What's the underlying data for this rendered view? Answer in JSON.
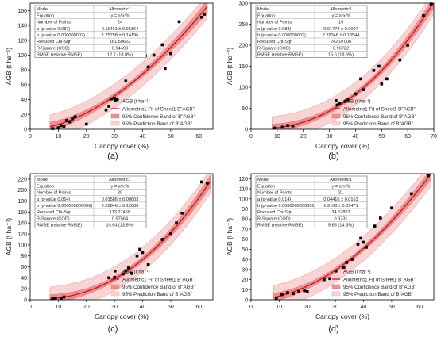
{
  "chart_data": [
    {
      "type": "scatter",
      "panel_label": "(a)",
      "xlabel": "Canopy cover (%)",
      "ylabel": "AGB (t ha⁻¹)",
      "xlim": [
        0,
        65
      ],
      "ylim": [
        0,
        170
      ],
      "xticks": [
        0,
        10,
        20,
        30,
        40,
        50,
        60
      ],
      "yticks": [
        0,
        20,
        40,
        60,
        80,
        100,
        120,
        140,
        160
      ],
      "model": {
        "a": 0.11401,
        "b": 1.75758,
        "conf_half_width": 6,
        "pred_half_width": 16
      },
      "stats_table": [
        [
          "Model",
          "Allometric1"
        ],
        [
          "Equation",
          "y = a*x^b"
        ],
        [
          "Number of Points",
          "24"
        ],
        [
          "a (p-value 0.087)",
          "0.11401 ± 0.06364"
        ],
        [
          "b (p-value 0.000000002)",
          "1.75758 ± 0.14196"
        ],
        [
          "Reduced Chi-Sqr",
          "161.50622"
        ],
        [
          "R-Square (COD)",
          "0.94493"
        ],
        [
          "RMSE (relative RMSE)",
          "12.7 (18.8%)"
        ]
      ],
      "legend": [
        "AGB (t ha⁻¹)",
        "Allometric1 Fit of Sheet1 B\"AGB\"",
        "95% Confidence Band of B\"AGB\"",
        "95% Prediction Band of B\"AGB\""
      ],
      "legend_position": "bottom-right",
      "points": [
        [
          8,
          1
        ],
        [
          10,
          2
        ],
        [
          11,
          5
        ],
        [
          12,
          4
        ],
        [
          13,
          12
        ],
        [
          14,
          10
        ],
        [
          15,
          14
        ],
        [
          16,
          17
        ],
        [
          20,
          7
        ],
        [
          27,
          26
        ],
        [
          28,
          31
        ],
        [
          29,
          41
        ],
        [
          30,
          42
        ],
        [
          31,
          40
        ],
        [
          34,
          65
        ],
        [
          41,
          99
        ],
        [
          42,
          84
        ],
        [
          44,
          100
        ],
        [
          47,
          114
        ],
        [
          48,
          82
        ],
        [
          50,
          102
        ],
        [
          53,
          145
        ],
        [
          61,
          151
        ],
        [
          62,
          155
        ]
      ]
    },
    {
      "type": "scatter",
      "panel_label": "(b)",
      "xlabel": "Canopy cover (%)",
      "ylabel": "AGB (t ha⁻¹)",
      "xlim": [
        0,
        70
      ],
      "ylim": [
        0,
        300
      ],
      "xticks": [
        0,
        10,
        20,
        30,
        40,
        50,
        60,
        70
      ],
      "yticks": [
        0,
        50,
        100,
        150,
        200,
        250,
        300
      ],
      "model": {
        "a": 0.01772,
        "b": 2.29346,
        "conf_half_width": 10,
        "pred_half_width": 28
      },
      "stats_table": [
        [
          "Model",
          "Allometric1"
        ],
        [
          "Equation",
          "y = a*x^b"
        ],
        [
          "Number of Points",
          "19"
        ],
        [
          "a (p-value 0.083)",
          "0.01772 ± 0.0097"
        ],
        [
          "b (p-value 0.000000002)",
          "2.29346 ± 0.13544"
        ],
        [
          "Reduced Chi-Sqr",
          "242.07006"
        ],
        [
          "R-Square (COD)",
          "0.96722"
        ],
        [
          "RMSE (relative RMSE)",
          "15.6 (19.6%)"
        ]
      ],
      "legend": [
        "AGB (t ha⁻¹)",
        "Allometric1 Fit of Sheet1 B\"AGB\"",
        "95% Confidence Band of B\"AGB\"",
        "95% Prediction Band of B\"AGB\""
      ],
      "legend_position": "bottom-right",
      "points": [
        [
          9,
          3
        ],
        [
          12,
          5
        ],
        [
          14,
          9
        ],
        [
          16,
          8
        ],
        [
          33,
          58
        ],
        [
          34,
          62
        ],
        [
          36,
          66
        ],
        [
          37,
          70
        ],
        [
          40,
          84
        ],
        [
          42,
          120
        ],
        [
          43,
          94
        ],
        [
          47,
          140
        ],
        [
          49,
          150
        ],
        [
          50,
          108
        ],
        [
          52,
          120
        ],
        [
          57,
          165
        ],
        [
          60,
          200
        ],
        [
          66,
          270
        ],
        [
          69,
          298
        ]
      ]
    },
    {
      "type": "scatter",
      "panel_label": "(c)",
      "xlabel": "Canopy cover (%)",
      "ylabel": "AGB (t ha⁻¹)",
      "xlim": [
        0,
        65
      ],
      "ylim": [
        0,
        230
      ],
      "xticks": [
        0,
        10,
        20,
        30,
        40,
        50,
        60
      ],
      "yticks": [
        0,
        20,
        40,
        60,
        80,
        100,
        120,
        140,
        160,
        180,
        200,
        220
      ],
      "model": {
        "a": 0.01586,
        "b": 2.28846,
        "conf_half_width": 8,
        "pred_half_width": 22
      },
      "stats_table": [
        [
          "Model",
          "Allometric1"
        ],
        [
          "Equation",
          "y = a*x^b"
        ],
        [
          "Number of Points",
          "20"
        ],
        [
          "a (p-value 0.064)",
          "0.01586 ± 0.00803"
        ],
        [
          "b (p-value 0.000000000006)",
          "2.28846 ± 0.12686"
        ],
        [
          "Reduced Chi-Sqr",
          "113.27468"
        ],
        [
          "R-Square (COD)",
          "0.97564"
        ],
        [
          "RMSE (relative RMSE)",
          "10.64 (13.8%)"
        ]
      ],
      "legend": [
        "AGB (t ha⁻¹)",
        "Allometric1 Fit of Sheet1 B\"AGB\"",
        "95% Confidence Band of B\"AGB\"",
        "95% Prediction Band of B\"AGB\""
      ],
      "legend_position": "bottom-right",
      "points": [
        [
          8,
          2
        ],
        [
          9,
          3
        ],
        [
          11,
          2
        ],
        [
          12,
          5
        ],
        [
          28,
          40
        ],
        [
          30,
          41
        ],
        [
          33,
          47
        ],
        [
          34,
          53
        ],
        [
          35,
          58
        ],
        [
          36,
          48
        ],
        [
          38,
          80
        ],
        [
          39,
          92
        ],
        [
          40,
          86
        ],
        [
          42,
          64
        ],
        [
          47,
          110
        ],
        [
          50,
          121
        ],
        [
          52,
          140
        ],
        [
          54,
          158
        ],
        [
          61,
          215
        ],
        [
          63,
          213
        ]
      ]
    },
    {
      "type": "scatter",
      "panel_label": "(d)",
      "xlabel": "Canopy cover (%)",
      "ylabel": "AGB (t ha⁻¹)",
      "xlim": [
        0,
        65
      ],
      "ylim": [
        0,
        125
      ],
      "xticks": [
        0,
        10,
        20,
        30,
        40,
        50,
        60
      ],
      "yticks": [
        0,
        10,
        20,
        30,
        40,
        50,
        60,
        70,
        80,
        90,
        100,
        110,
        120
      ],
      "model": {
        "a": 0.04416,
        "b": 1.9108,
        "conf_half_width": 4,
        "pred_half_width": 12
      },
      "stats_table": [
        [
          "Model",
          "Allometric1"
        ],
        [
          "Equation",
          "y = a*x^b"
        ],
        [
          "Number of Points",
          "21"
        ],
        [
          "a (p-value 0.014)",
          "0.04416 ± 0.0163"
        ],
        [
          "b (p-value 0.0000000000001)",
          "1.9108 ± 0.09471"
        ],
        [
          "Reduced Chi-Sqr",
          "34.52822"
        ],
        [
          "R-Square (COD)",
          "0.9731"
        ],
        [
          "RMSE (relative RMSE)",
          "5.88 (14.3%)"
        ]
      ],
      "legend": [
        "AGB (t ha⁻¹)",
        "Allometric1 Fit of Sheet1 B\"AGB\"",
        "95% Confidence Band of B\"AGB\"",
        "95% Prediction Band of B\"AGB\""
      ],
      "legend_position": "bottom-right",
      "points": [
        [
          9,
          1
        ],
        [
          11,
          5
        ],
        [
          13,
          7
        ],
        [
          15,
          6
        ],
        [
          17,
          8
        ],
        [
          19,
          9
        ],
        [
          20,
          8
        ],
        [
          26,
          20
        ],
        [
          28,
          21
        ],
        [
          33,
          32
        ],
        [
          34,
          37
        ],
        [
          36,
          40
        ],
        [
          38,
          55
        ],
        [
          39,
          61
        ],
        [
          40,
          57
        ],
        [
          41,
          52
        ],
        [
          44,
          73
        ],
        [
          46,
          81
        ],
        [
          50,
          91
        ],
        [
          57,
          105
        ],
        [
          63,
          123
        ]
      ]
    }
  ]
}
